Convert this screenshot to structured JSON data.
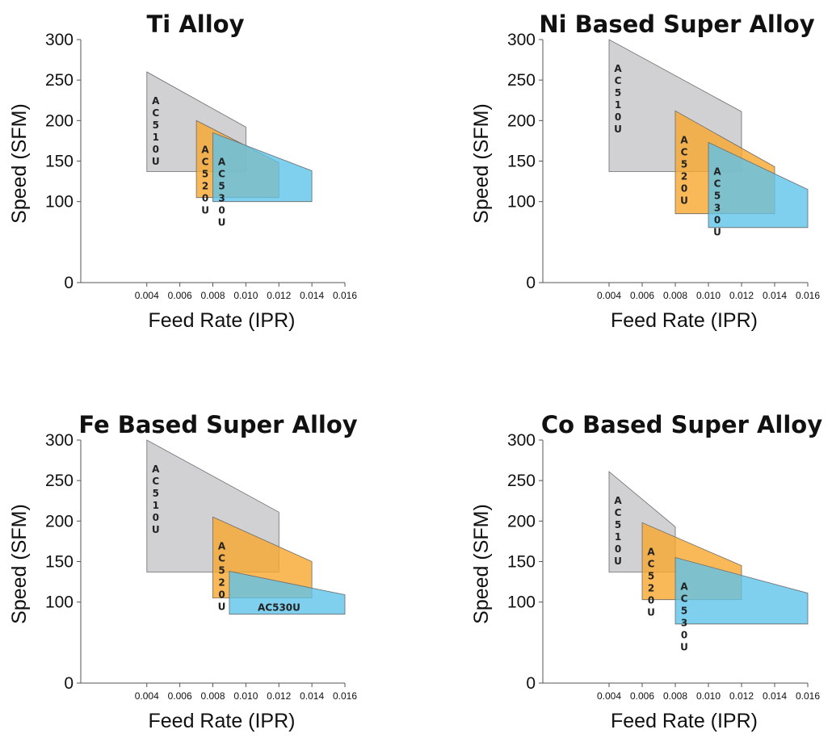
{
  "chart_data": [
    {
      "type": "area",
      "title": "Ti Alloy",
      "xlabel": "Feed Rate (IPR)",
      "ylabel": "Speed (SFM)",
      "xlim": [
        0.0,
        0.016
      ],
      "ylim": [
        0,
        300
      ],
      "x_ticks": [
        "0.004",
        "0.006",
        "0.008",
        "0.010",
        "0.012",
        "0.014",
        "0.016"
      ],
      "y_ticks": [
        "0",
        "100",
        "150",
        "200",
        "250",
        "300"
      ],
      "regions": [
        {
          "name": "AC510U",
          "label_style": "vertical",
          "color": "#c9c9cb",
          "points": [
            [
              0.004,
              137
            ],
            [
              0.004,
              260
            ],
            [
              0.01,
              192
            ],
            [
              0.01,
              137
            ]
          ]
        },
        {
          "name": "AC520U",
          "label_style": "vertical",
          "color": "#f7a82e",
          "points": [
            [
              0.007,
              105
            ],
            [
              0.007,
              200
            ],
            [
              0.012,
              148
            ],
            [
              0.012,
              105
            ]
          ]
        },
        {
          "name": "AC530U",
          "label_style": "vertical",
          "color": "#5fc3ea",
          "points": [
            [
              0.008,
              100
            ],
            [
              0.008,
              185
            ],
            [
              0.014,
              138
            ],
            [
              0.014,
              100
            ]
          ]
        }
      ]
    },
    {
      "type": "area",
      "title": "Ni Based Super Alloy",
      "xlabel": "Feed Rate (IPR)",
      "ylabel": "Speed (SFM)",
      "xlim": [
        0.0,
        0.016
      ],
      "ylim": [
        0,
        300
      ],
      "x_ticks": [
        "0.004",
        "0.006",
        "0.008",
        "0.010",
        "0.012",
        "0.014",
        "0.016"
      ],
      "y_ticks": [
        "0",
        "100",
        "150",
        "200",
        "250",
        "300"
      ],
      "regions": [
        {
          "name": "AC510U",
          "label_style": "vertical",
          "color": "#c9c9cb",
          "points": [
            [
              0.004,
              137
            ],
            [
              0.004,
              300
            ],
            [
              0.012,
              211
            ],
            [
              0.012,
              137
            ]
          ]
        },
        {
          "name": "AC520U",
          "label_style": "vertical",
          "color": "#f7a82e",
          "points": [
            [
              0.008,
              85
            ],
            [
              0.008,
              212
            ],
            [
              0.014,
              143
            ],
            [
              0.014,
              85
            ]
          ]
        },
        {
          "name": "AC530U",
          "label_style": "vertical",
          "color": "#5fc3ea",
          "points": [
            [
              0.01,
              68
            ],
            [
              0.01,
              173
            ],
            [
              0.016,
              115
            ],
            [
              0.016,
              68
            ]
          ]
        }
      ]
    },
    {
      "type": "area",
      "title": "Fe Based Super Alloy",
      "xlabel": "Feed Rate (IPR)",
      "ylabel": "Speed (SFM)",
      "xlim": [
        0.0,
        0.016
      ],
      "ylim": [
        0,
        300
      ],
      "x_ticks": [
        "0.004",
        "0.006",
        "0.008",
        "0.010",
        "0.012",
        "0.014",
        "0.016"
      ],
      "y_ticks": [
        "0",
        "100",
        "150",
        "200",
        "250",
        "300"
      ],
      "regions": [
        {
          "name": "AC510U",
          "label_style": "vertical",
          "color": "#c9c9cb",
          "points": [
            [
              0.004,
              137
            ],
            [
              0.004,
              300
            ],
            [
              0.012,
              211
            ],
            [
              0.012,
              137
            ]
          ]
        },
        {
          "name": "AC520U",
          "label_style": "vertical",
          "color": "#f7a82e",
          "points": [
            [
              0.008,
              105
            ],
            [
              0.008,
              205
            ],
            [
              0.014,
              150
            ],
            [
              0.014,
              105
            ]
          ]
        },
        {
          "name": "AC530U",
          "label_style": "horizontal",
          "color": "#5fc3ea",
          "points": [
            [
              0.009,
              85
            ],
            [
              0.009,
              138
            ],
            [
              0.016,
              109
            ],
            [
              0.016,
              85
            ]
          ]
        }
      ]
    },
    {
      "type": "area",
      "title": "Co Based Super Alloy",
      "xlabel": "Feed Rate (IPR)",
      "ylabel": "Speed (SFM)",
      "xlim": [
        0.0,
        0.016
      ],
      "ylim": [
        0,
        300
      ],
      "x_ticks": [
        "0.004",
        "0.006",
        "0.008",
        "0.010",
        "0.012",
        "0.014",
        "0.016"
      ],
      "y_ticks": [
        "0",
        "100",
        "150",
        "200",
        "250",
        "300"
      ],
      "regions": [
        {
          "name": "AC510U",
          "label_style": "vertical",
          "color": "#c9c9cb",
          "points": [
            [
              0.004,
              137
            ],
            [
              0.004,
              261
            ],
            [
              0.008,
              193
            ],
            [
              0.008,
              137
            ]
          ]
        },
        {
          "name": "AC520U",
          "label_style": "vertical",
          "color": "#f7a82e",
          "points": [
            [
              0.006,
              103
            ],
            [
              0.006,
              198
            ],
            [
              0.012,
              145
            ],
            [
              0.012,
              103
            ]
          ]
        },
        {
          "name": "AC530U",
          "label_style": "vertical",
          "color": "#5fc3ea",
          "points": [
            [
              0.008,
              73
            ],
            [
              0.008,
              155
            ],
            [
              0.016,
              111
            ],
            [
              0.016,
              73
            ]
          ]
        }
      ]
    }
  ]
}
